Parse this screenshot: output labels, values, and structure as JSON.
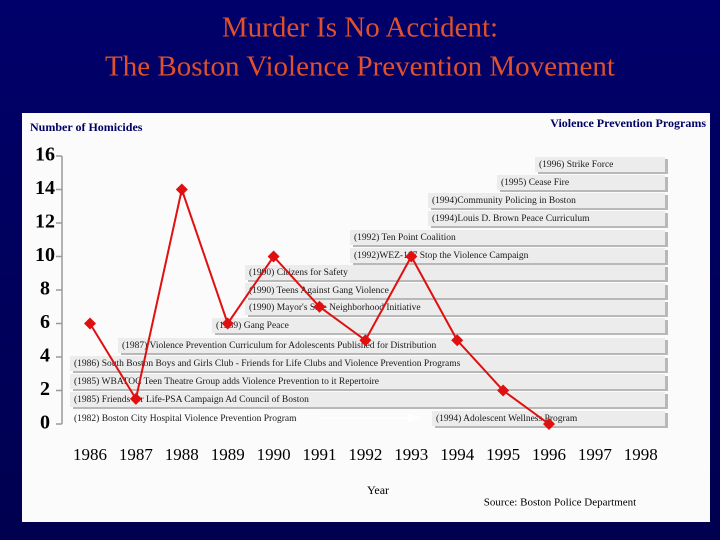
{
  "chart_data": {
    "type": "line",
    "title": "Murder Is No Accident:",
    "subtitle": "The Boston Violence Prevention Movement",
    "y_label": "Number of Homicides",
    "programs_label": "Violence Prevention Programs",
    "x_label": "Year",
    "source": "Source:  Boston Police Department",
    "categories": [
      "1986",
      "1987",
      "1988",
      "1989",
      "1990",
      "1991",
      "1992",
      "1993",
      "1994",
      "1995",
      "1996",
      "1997",
      "1998"
    ],
    "values": [
      6,
      1.5,
      14,
      6,
      10,
      7,
      5,
      10,
      5,
      2,
      0,
      null,
      null
    ],
    "color": "#e01010",
    "marker": "diamond",
    "ylim": [
      0,
      16
    ],
    "yticks": [
      0,
      2,
      4,
      6,
      8,
      10,
      12,
      14,
      16
    ],
    "programs": [
      "(1996) Strike Force",
      "(1995) Cease Fire",
      "(1994)Community Policing in Boston",
      "(1994)Louis D. Brown Peace Curriculum",
      "(1992) Ten Point Coalition",
      "(1992)WEZ-107 Stop the Violence Campaign",
      "(1990) Citizens for Safety",
      "(1990) Teens Against Gang Violence",
      "(1990) Mayor's Safe Neighborhood Initiative",
      "(1989) Gang Peace",
      "(1987) Violence Prevention Curriculum for Adolescents Published for Distribution",
      "(1986) South Boston Boys and Girls Club - Friends for Life Clubs and Violence Prevention Programs",
      "(1985) WBATOC Teen Theatre Group adds Violence Prevention to it Repertoire",
      "(1985)  Friends for Life-PSA Campaign Ad Council of Boston",
      "(1982) Boston City Hospital Violence Prevention Program",
      "(1994) Adolescent Wellness Program"
    ]
  }
}
